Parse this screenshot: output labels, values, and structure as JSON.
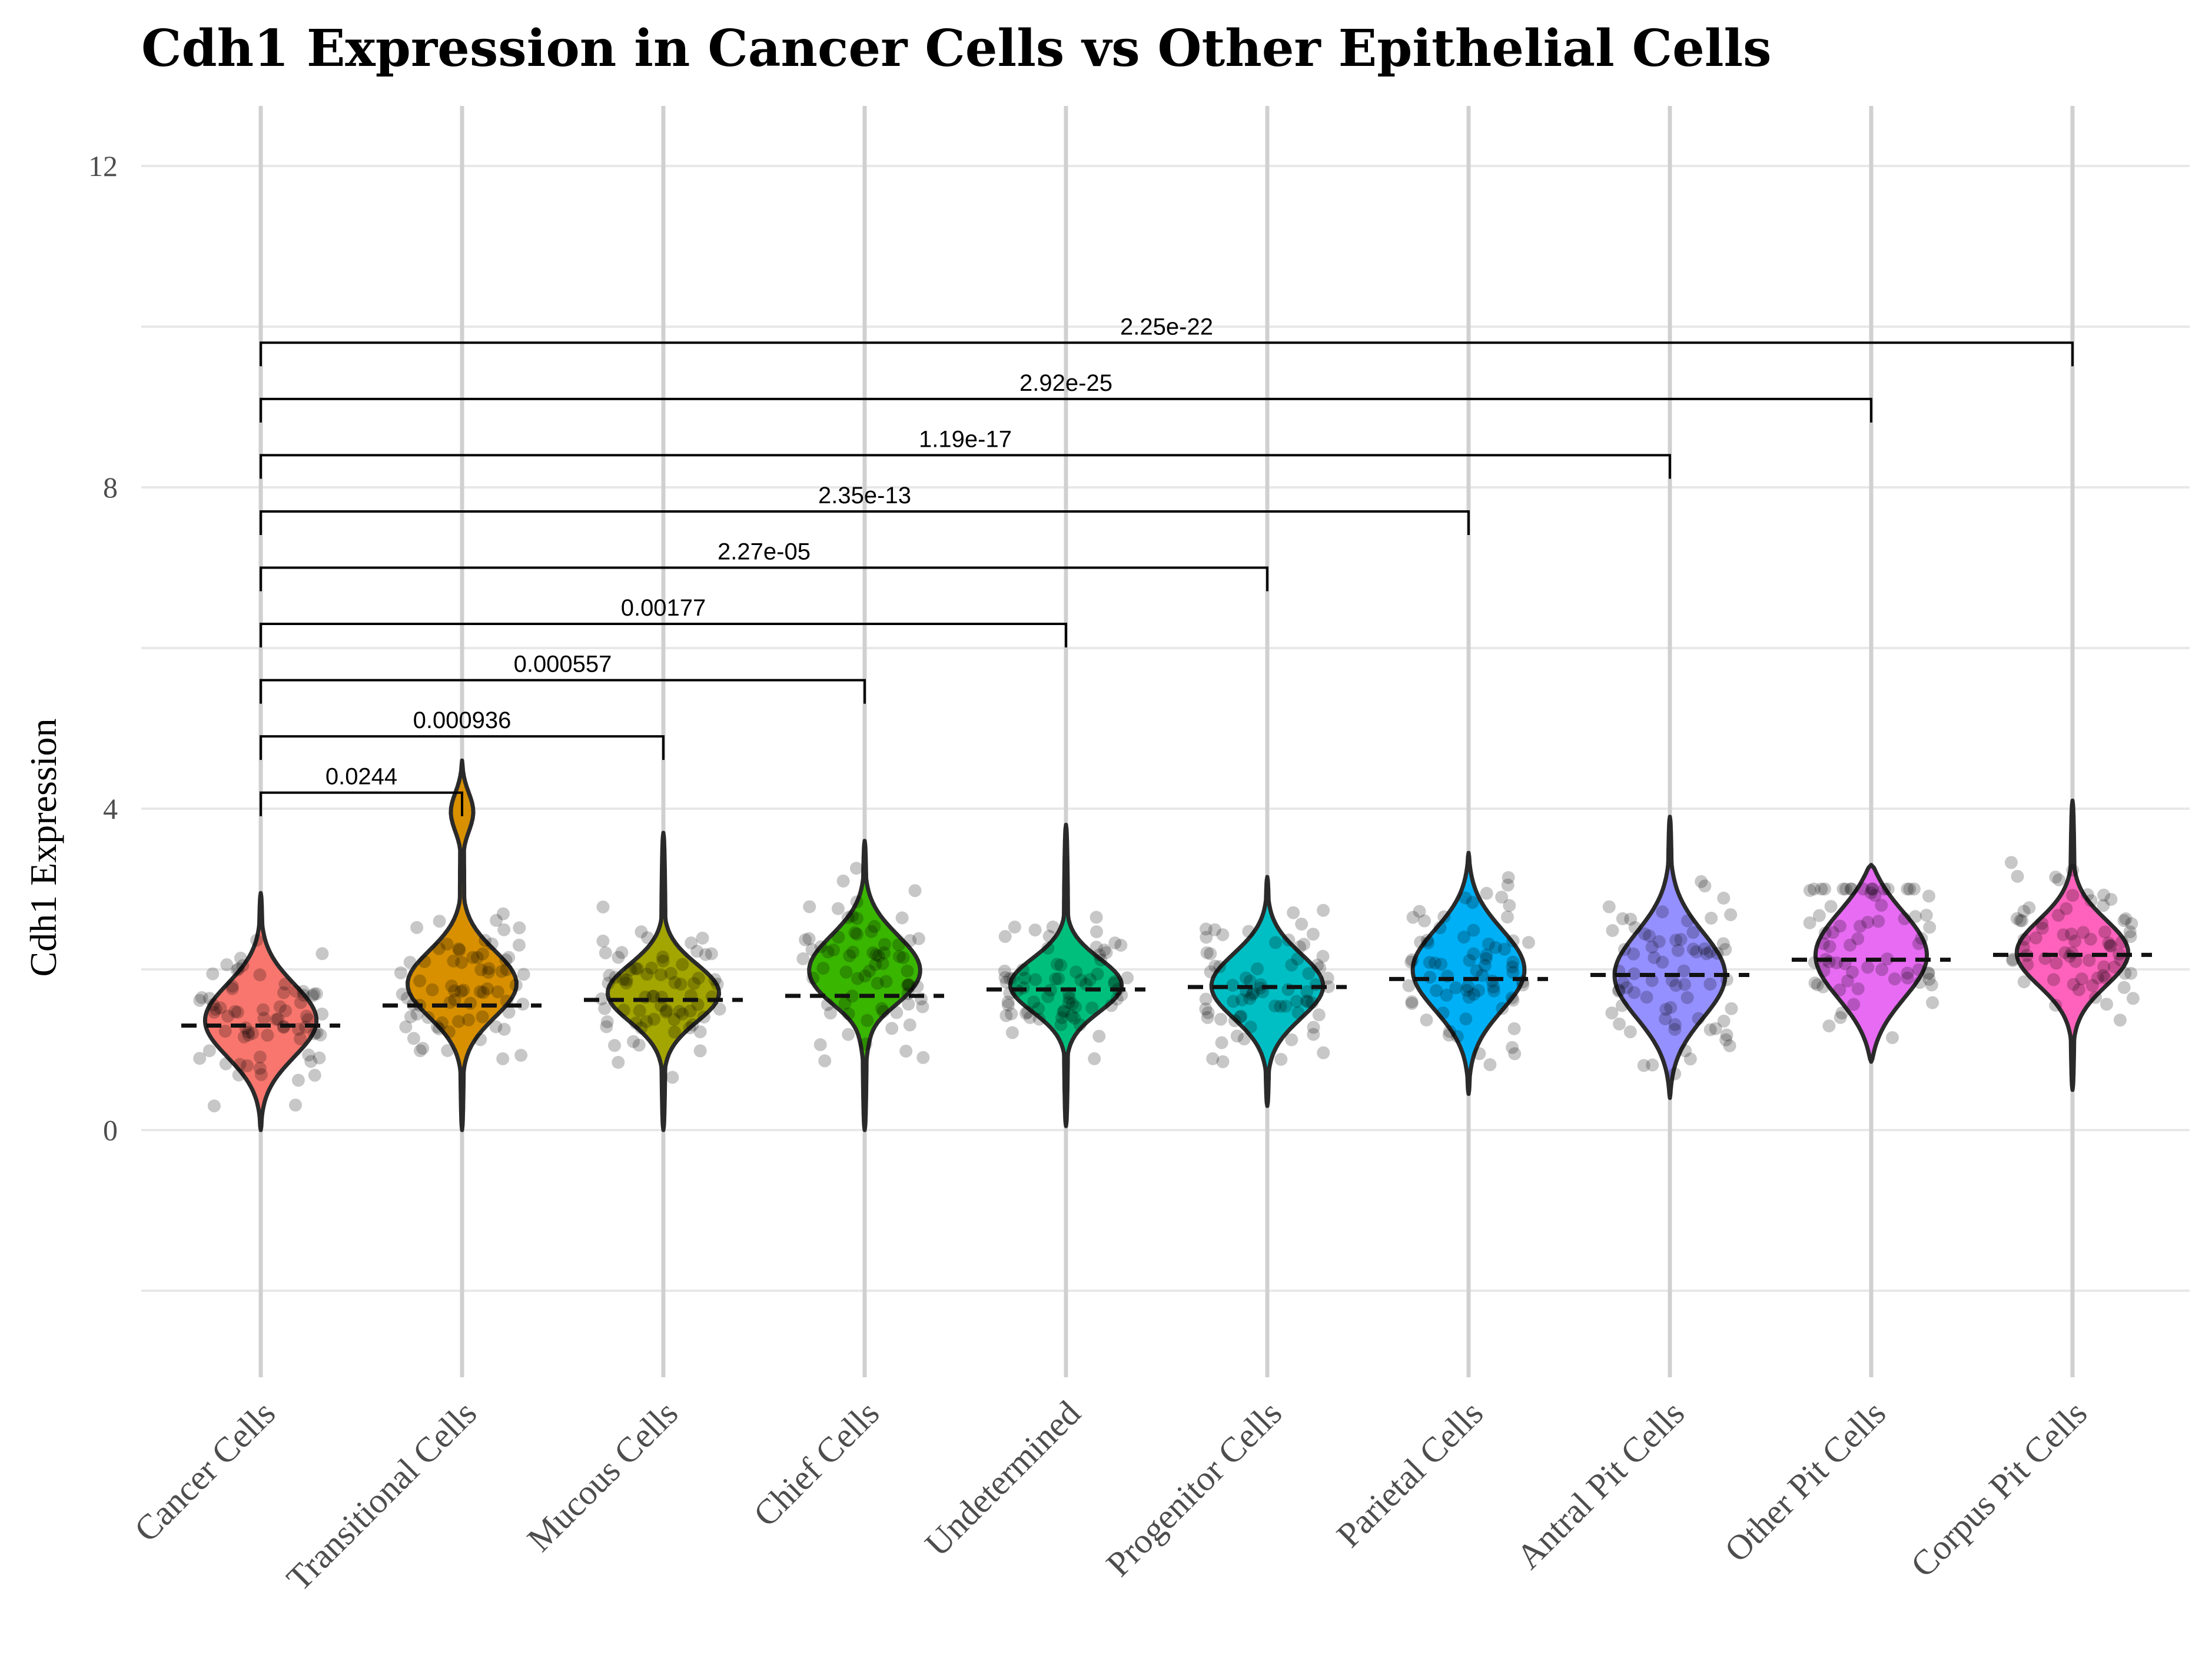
{
  "chart_data": {
    "type": "violin",
    "title": "Cdh1 Expression in Cancer Cells vs Other Epithelial Cells",
    "xlabel": "",
    "ylabel": "Cdh1 Expression",
    "ylim": [
      -2.8,
      12.8
    ],
    "yticks": [
      0,
      4,
      8,
      12
    ],
    "grid": true,
    "categories": [
      "Cancer Cells",
      "Transitional Cells",
      "Mucous Cells",
      "Chief Cells",
      "Undetermined",
      "Progenitor Cells",
      "Parietal Cells",
      "Antral Pit Cells",
      "Other Pit Cells",
      "Corpus Pit Cells"
    ],
    "colors": [
      "#F8766D",
      "#D89000",
      "#A3A500",
      "#39B600",
      "#00BF7D",
      "#00BFC4",
      "#00B0F6",
      "#9590FF",
      "#E76BF3",
      "#FF62BC"
    ],
    "series": [
      {
        "values": {
          "min": 0.0,
          "max": 2.95,
          "mean": 1.3,
          "peak": 1.35,
          "width": 0.85
        }
      },
      {
        "values": {
          "min": 0.0,
          "max": 4.6,
          "mean": 1.55,
          "peak": 1.8,
          "width": 0.75
        }
      },
      {
        "values": {
          "min": 0.0,
          "max": 3.7,
          "mean": 1.62,
          "peak": 1.7,
          "width": 0.65
        }
      },
      {
        "values": {
          "min": 0.0,
          "max": 3.6,
          "mean": 1.67,
          "peak": 2.0,
          "width": 0.8
        }
      },
      {
        "values": {
          "min": 0.05,
          "max": 3.8,
          "mean": 1.75,
          "peak": 1.8,
          "width": 0.6
        }
      },
      {
        "values": {
          "min": 0.3,
          "max": 3.15,
          "mean": 1.78,
          "peak": 1.8,
          "width": 0.75
        }
      },
      {
        "values": {
          "min": 0.45,
          "max": 3.45,
          "mean": 1.88,
          "peak": 2.0,
          "width": 0.95
        }
      },
      {
        "values": {
          "min": 0.4,
          "max": 3.9,
          "mean": 1.93,
          "peak": 1.9,
          "width": 1.0
        }
      },
      {
        "values": {
          "min": 0.85,
          "max": 3.3,
          "mean": 2.12,
          "peak": 2.2,
          "width": 1.05
        }
      },
      {
        "values": {
          "min": 0.5,
          "max": 4.1,
          "mean": 2.18,
          "peak": 2.2,
          "width": 0.75
        }
      }
    ],
    "comparisons": [
      {
        "group1": "Cancer Cells",
        "group2": "Transitional Cells",
        "label": "0.0244",
        "y": 4.2
      },
      {
        "group1": "Cancer Cells",
        "group2": "Mucous Cells",
        "label": "0.000936",
        "y": 4.9
      },
      {
        "group1": "Cancer Cells",
        "group2": "Chief Cells",
        "label": "0.000557",
        "y": 5.6
      },
      {
        "group1": "Cancer Cells",
        "group2": "Undetermined",
        "label": "0.00177",
        "y": 6.3
      },
      {
        "group1": "Cancer Cells",
        "group2": "Progenitor Cells",
        "label": "2.27e-05",
        "y": 7.0
      },
      {
        "group1": "Cancer Cells",
        "group2": "Parietal Cells",
        "label": "2.35e-13",
        "y": 7.7
      },
      {
        "group1": "Cancer Cells",
        "group2": "Antral Pit Cells",
        "label": "1.19e-17",
        "y": 8.4
      },
      {
        "group1": "Cancer Cells",
        "group2": "Other Pit Cells",
        "label": "2.92e-25",
        "y": 9.1
      },
      {
        "group1": "Cancer Cells",
        "group2": "Corpus Pit Cells",
        "label": "2.25e-22",
        "y": 9.8
      }
    ]
  }
}
